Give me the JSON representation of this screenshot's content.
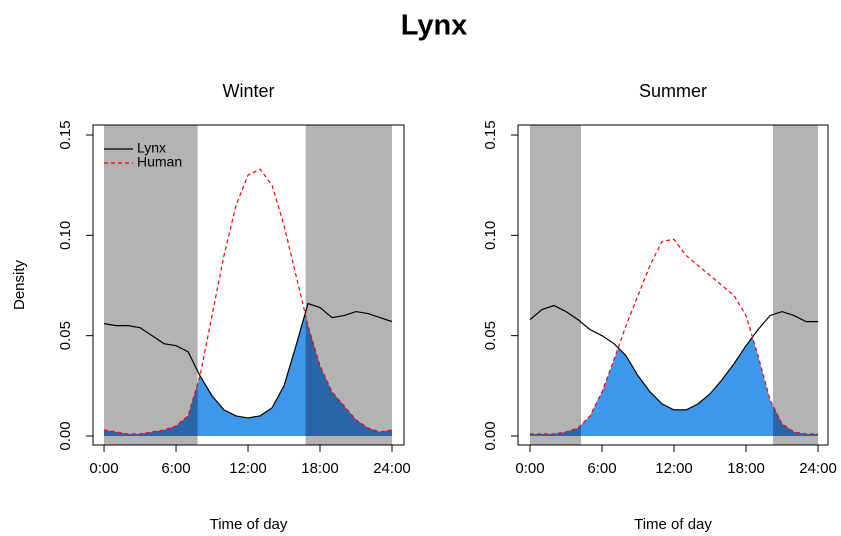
{
  "title": "Lynx",
  "chart_data": [
    {
      "type": "line",
      "title": "Winter",
      "x_label": "Time of day",
      "y_label": "Density",
      "x": [
        0,
        1,
        2,
        3,
        4,
        5,
        6,
        7,
        8,
        9,
        10,
        11,
        12,
        13,
        14,
        15,
        16,
        17,
        18,
        19,
        20,
        21,
        22,
        23,
        24
      ],
      "series": [
        {
          "name": "Lynx",
          "color": "#000000",
          "dash": false,
          "values": [
            0.056,
            0.055,
            0.055,
            0.054,
            0.05,
            0.046,
            0.045,
            0.042,
            0.03,
            0.02,
            0.013,
            0.01,
            0.009,
            0.01,
            0.014,
            0.025,
            0.045,
            0.066,
            0.064,
            0.059,
            0.06,
            0.062,
            0.061,
            0.059,
            0.057
          ]
        },
        {
          "name": "Human",
          "color": "#ff0000",
          "dash": true,
          "values": [
            0.003,
            0.002,
            0.001,
            0.001,
            0.002,
            0.003,
            0.005,
            0.01,
            0.03,
            0.06,
            0.09,
            0.115,
            0.13,
            0.133,
            0.125,
            0.105,
            0.08,
            0.055,
            0.035,
            0.022,
            0.015,
            0.008,
            0.004,
            0.002,
            0.003
          ]
        }
      ],
      "night": [
        [
          0,
          7.8
        ],
        [
          16.8,
          24
        ]
      ],
      "night_color": "#b3b3b3",
      "overlap_color": "#3f97ea",
      "overlap_night_color": "#2a65a7",
      "xlim": [
        -0.92,
        25
      ],
      "ylim": [
        -0.0045,
        0.155
      ],
      "xticks": [
        {
          "value": 0,
          "label": "0:00"
        },
        {
          "value": 6,
          "label": "6:00"
        },
        {
          "value": 12,
          "label": "12:00"
        },
        {
          "value": 18,
          "label": "18:00"
        },
        {
          "value": 24,
          "label": "24:00"
        }
      ],
      "yticks": [
        {
          "value": 0,
          "label": "0.00"
        },
        0.05,
        {
          "value": 0.1,
          "label": "0.10"
        },
        0.15
      ],
      "legend": "top-left"
    },
    {
      "type": "line",
      "title": "Summer",
      "x_label": "Time of day",
      "x": [
        0,
        1,
        2,
        3,
        4,
        5,
        6,
        7,
        8,
        9,
        10,
        11,
        12,
        13,
        14,
        15,
        16,
        17,
        18,
        19,
        20,
        21,
        22,
        23,
        24
      ],
      "series": [
        {
          "name": "Lynx",
          "color": "#000000",
          "dash": false,
          "values": [
            0.058,
            0.063,
            0.065,
            0.062,
            0.058,
            0.053,
            0.05,
            0.046,
            0.04,
            0.03,
            0.022,
            0.016,
            0.013,
            0.013,
            0.016,
            0.021,
            0.028,
            0.036,
            0.045,
            0.053,
            0.06,
            0.062,
            0.06,
            0.057,
            0.057
          ]
        },
        {
          "name": "Human",
          "color": "#ff0000",
          "dash": true,
          "values": [
            0.001,
            0.001,
            0.001,
            0.002,
            0.004,
            0.01,
            0.022,
            0.038,
            0.055,
            0.07,
            0.085,
            0.097,
            0.098,
            0.09,
            0.085,
            0.08,
            0.075,
            0.07,
            0.06,
            0.04,
            0.018,
            0.006,
            0.002,
            0.001,
            0.001
          ]
        }
      ],
      "night": [
        [
          0,
          4.25
        ],
        [
          20.25,
          24
        ]
      ],
      "night_color": "#b3b3b3",
      "overlap_color": "#3f97ea",
      "overlap_night_color": "#2a65a7",
      "xlim": [
        -1,
        24.83
      ],
      "ylim": [
        -0.0045,
        0.155
      ],
      "xticks": [
        {
          "value": 0,
          "label": "0:00"
        },
        {
          "value": 6,
          "label": "6:00"
        },
        {
          "value": 12,
          "label": "12:00"
        },
        {
          "value": 18,
          "label": "18:00"
        },
        {
          "value": 24,
          "label": "24:00"
        }
      ],
      "yticks": [
        {
          "value": 0,
          "label": "0.00"
        },
        0.05,
        {
          "value": 0.1,
          "label": "0.10"
        },
        0.15
      ]
    }
  ]
}
